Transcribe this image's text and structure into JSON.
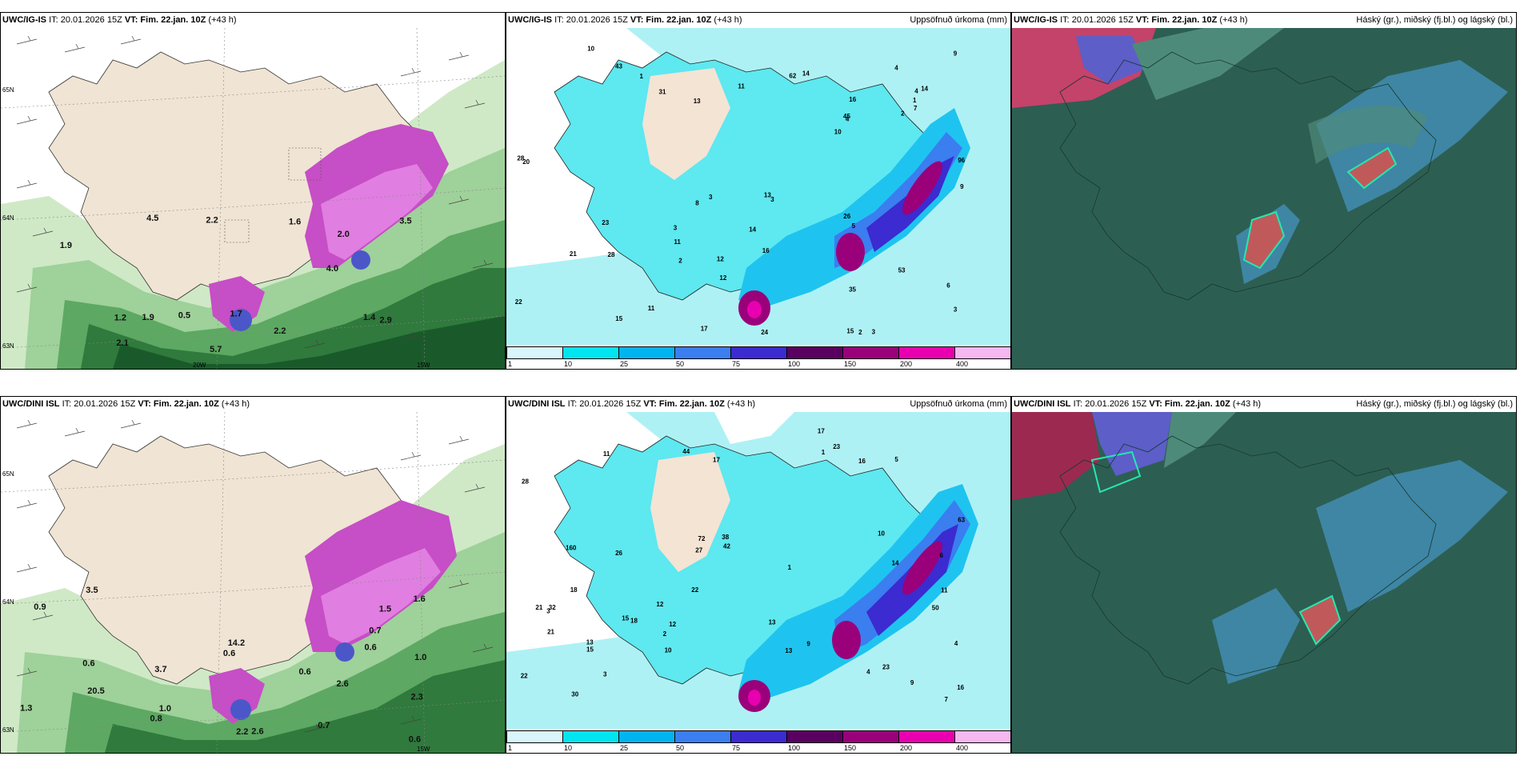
{
  "panels": {
    "p1": {
      "model": "UWC/IG-IS",
      "init": "IT: 20.01.2026 15Z",
      "valid": "VT: Fim. 22.jan. 10Z",
      "lead": "(+43 h)",
      "title": ""
    },
    "p2": {
      "model": "UWC/IG-IS",
      "init": "IT: 20.01.2026 15Z",
      "valid": "VT: Fim. 22.jan. 10Z",
      "lead": "(+43 h)",
      "title": "Uppsöfnuð úrkoma (mm)"
    },
    "p3": {
      "model": "UWC/IG-IS",
      "init": "IT: 20.01.2026 15Z",
      "valid": "VT: Fim. 22.jan. 10Z",
      "lead": "(+43 h)",
      "title": "Háský (gr.), miðský (fj.bl.) og lágský (bl.)"
    },
    "p4": {
      "model": "UWC/DINI ISL",
      "init": "IT: 20.01.2026 15Z",
      "valid": "VT: Fim. 22.jan. 10Z",
      "lead": "(+43 h)",
      "title": ""
    },
    "p5": {
      "model": "UWC/DINI ISL",
      "init": "IT: 20.01.2026 15Z",
      "valid": "VT: Fim. 22.jan. 10Z",
      "lead": "(+43 h)",
      "title": "Uppsöfnuð úrkoma (mm)"
    },
    "p6": {
      "model": "UWC/DINI ISL",
      "init": "IT: 20.01.2026 15Z",
      "valid": "VT: Fim. 22.jan. 10Z",
      "lead": "(+43 h)",
      "title": "Háský (gr.), miðský (fj.bl.) og lágský (bl.)"
    }
  },
  "colorbar": {
    "labels": [
      "1",
      "10",
      "25",
      "50",
      "75",
      "100",
      "150",
      "200",
      "400"
    ],
    "colors": [
      "#d8f6fb",
      "#00e5f0",
      "#00b4ef",
      "#3a7ef0",
      "#3b2bd0",
      "#5a0060",
      "#9a007a",
      "#e800b0",
      "#f5b8f0"
    ]
  },
  "axis_labels": {
    "lat65": "65N",
    "lat64": "64N",
    "lat63": "63N",
    "lon20": "20W",
    "lon15": "15W"
  },
  "wind_numbers_ig": [
    "2.9",
    "4.0",
    "2.2",
    "2.1",
    "1.9",
    "2.2",
    "5.7",
    "1.2",
    "0.5",
    "1.9",
    "1.4",
    "3.5",
    "4.5",
    "1.6",
    "2.0",
    "1.7"
  ],
  "wind_numbers_dini": [
    "0.6",
    "0.6",
    "0.7",
    "0.6",
    "1.0",
    "0.8",
    "0.6",
    "0.6",
    "2.2",
    "2.3",
    "1.6",
    "0.7",
    "2.6",
    "2.6",
    "3.5",
    "3.7",
    "0.9",
    "1.0",
    "1.3",
    "1.5",
    "14.2",
    "20.5"
  ],
  "precip_numbers_ig": [
    "4",
    "3",
    "4",
    "3",
    "6",
    "3",
    "3",
    "2",
    "12",
    "28",
    "13",
    "15",
    "10",
    "9",
    "12",
    "15",
    "4",
    "3",
    "14",
    "11",
    "14",
    "2",
    "14",
    "20",
    "17",
    "35",
    "31",
    "96",
    "43",
    "45",
    "26",
    "16",
    "24",
    "22",
    "13",
    "21",
    "23",
    "28",
    "53",
    "62",
    "11",
    "9",
    "16",
    "1",
    "1",
    "2",
    "5",
    "7",
    "8",
    "10",
    "11"
  ],
  "precip_numbers_dini": [
    "6",
    "2",
    "1",
    "3",
    "4",
    "23",
    "14",
    "10",
    "1",
    "3",
    "5",
    "9",
    "12",
    "16",
    "13",
    "7",
    "17",
    "11",
    "13",
    "26",
    "28",
    "27",
    "42",
    "72",
    "63",
    "38",
    "17",
    "15",
    "13",
    "160",
    "44",
    "32",
    "30",
    "50",
    "22",
    "22",
    "21",
    "23",
    "18",
    "18",
    "9",
    "10",
    "4",
    "15",
    "12",
    "11",
    "16",
    "21"
  ]
}
